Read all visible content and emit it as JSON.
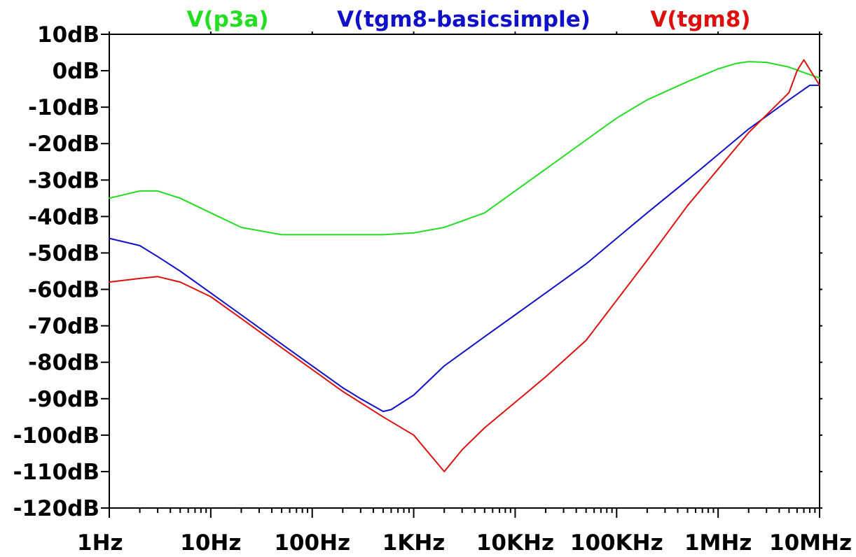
{
  "chart_data": {
    "type": "line",
    "x_scale": "log",
    "x_ticks": [
      {
        "value": 1,
        "label": "1Hz"
      },
      {
        "value": 10,
        "label": "10Hz"
      },
      {
        "value": 100,
        "label": "100Hz"
      },
      {
        "value": 1000,
        "label": "1KHz"
      },
      {
        "value": 10000,
        "label": "10KHz"
      },
      {
        "value": 100000,
        "label": "100KHz"
      },
      {
        "value": 1000000,
        "label": "1MHz"
      },
      {
        "value": 10000000,
        "label": "10MHz"
      }
    ],
    "xlim": [
      1,
      10000000
    ],
    "y_ticks": [
      {
        "value": 10,
        "label": "10dB"
      },
      {
        "value": 0,
        "label": "0dB"
      },
      {
        "value": -10,
        "label": "-10dB"
      },
      {
        "value": -20,
        "label": "-20dB"
      },
      {
        "value": -30,
        "label": "-30dB"
      },
      {
        "value": -40,
        "label": "-40dB"
      },
      {
        "value": -50,
        "label": "-50dB"
      },
      {
        "value": -60,
        "label": "-60dB"
      },
      {
        "value": -70,
        "label": "-70dB"
      },
      {
        "value": -80,
        "label": "-80dB"
      },
      {
        "value": -90,
        "label": "-90dB"
      },
      {
        "value": -100,
        "label": "-100dB"
      },
      {
        "value": -110,
        "label": "-110dB"
      },
      {
        "value": -120,
        "label": "-120dB"
      }
    ],
    "ylim": [
      -120,
      10
    ],
    "grid": false,
    "legend_placement": "top",
    "series": [
      {
        "name": "V(p3a)",
        "color": "#22dd22",
        "x": [
          1,
          2,
          3,
          5,
          10,
          20,
          50,
          100,
          200,
          500,
          1000,
          2000,
          5000,
          10000,
          20000,
          50000,
          100000,
          200000,
          500000,
          1000000,
          1500000,
          2000000,
          3000000,
          5000000,
          7000000,
          10000000
        ],
        "y": [
          -35,
          -33,
          -33,
          -35,
          -39,
          -43,
          -45,
          -45,
          -45,
          -45,
          -44.5,
          -43,
          -39,
          -33,
          -27,
          -19,
          -13,
          -8,
          -3,
          0.5,
          2,
          2.5,
          2.3,
          1,
          -0.5,
          -2
        ]
      },
      {
        "name": "V(tgm8-basicsimple)",
        "color": "#1010c8",
        "x": [
          1,
          2,
          3,
          5,
          10,
          20,
          50,
          100,
          200,
          300,
          500,
          600,
          1000,
          2000,
          5000,
          10000,
          20000,
          50000,
          100000,
          200000,
          500000,
          1000000,
          2000000,
          5000000,
          8000000,
          10000000
        ],
        "y": [
          -46,
          -48,
          -51,
          -55,
          -61,
          -67,
          -75,
          -81,
          -87,
          -90,
          -93.5,
          -93,
          -89,
          -81,
          -73,
          -67,
          -61,
          -53,
          -46,
          -39,
          -30,
          -23,
          -16,
          -8,
          -4,
          -4
        ]
      },
      {
        "name": "V(tgm8)",
        "color": "#dd1010",
        "x": [
          1,
          2,
          3,
          5,
          10,
          20,
          50,
          100,
          200,
          500,
          1000,
          2000,
          3000,
          5000,
          10000,
          20000,
          50000,
          100000,
          200000,
          500000,
          1000000,
          2000000,
          5000000,
          6000000,
          7000000,
          10000000
        ],
        "y": [
          -58,
          -57,
          -56.5,
          -58,
          -62,
          -68,
          -76,
          -82,
          -88,
          -95,
          -100,
          -110,
          -104,
          -98,
          -91,
          -84,
          -74,
          -63,
          -52,
          -37,
          -27,
          -17,
          -6,
          0,
          3,
          -4
        ]
      }
    ]
  }
}
